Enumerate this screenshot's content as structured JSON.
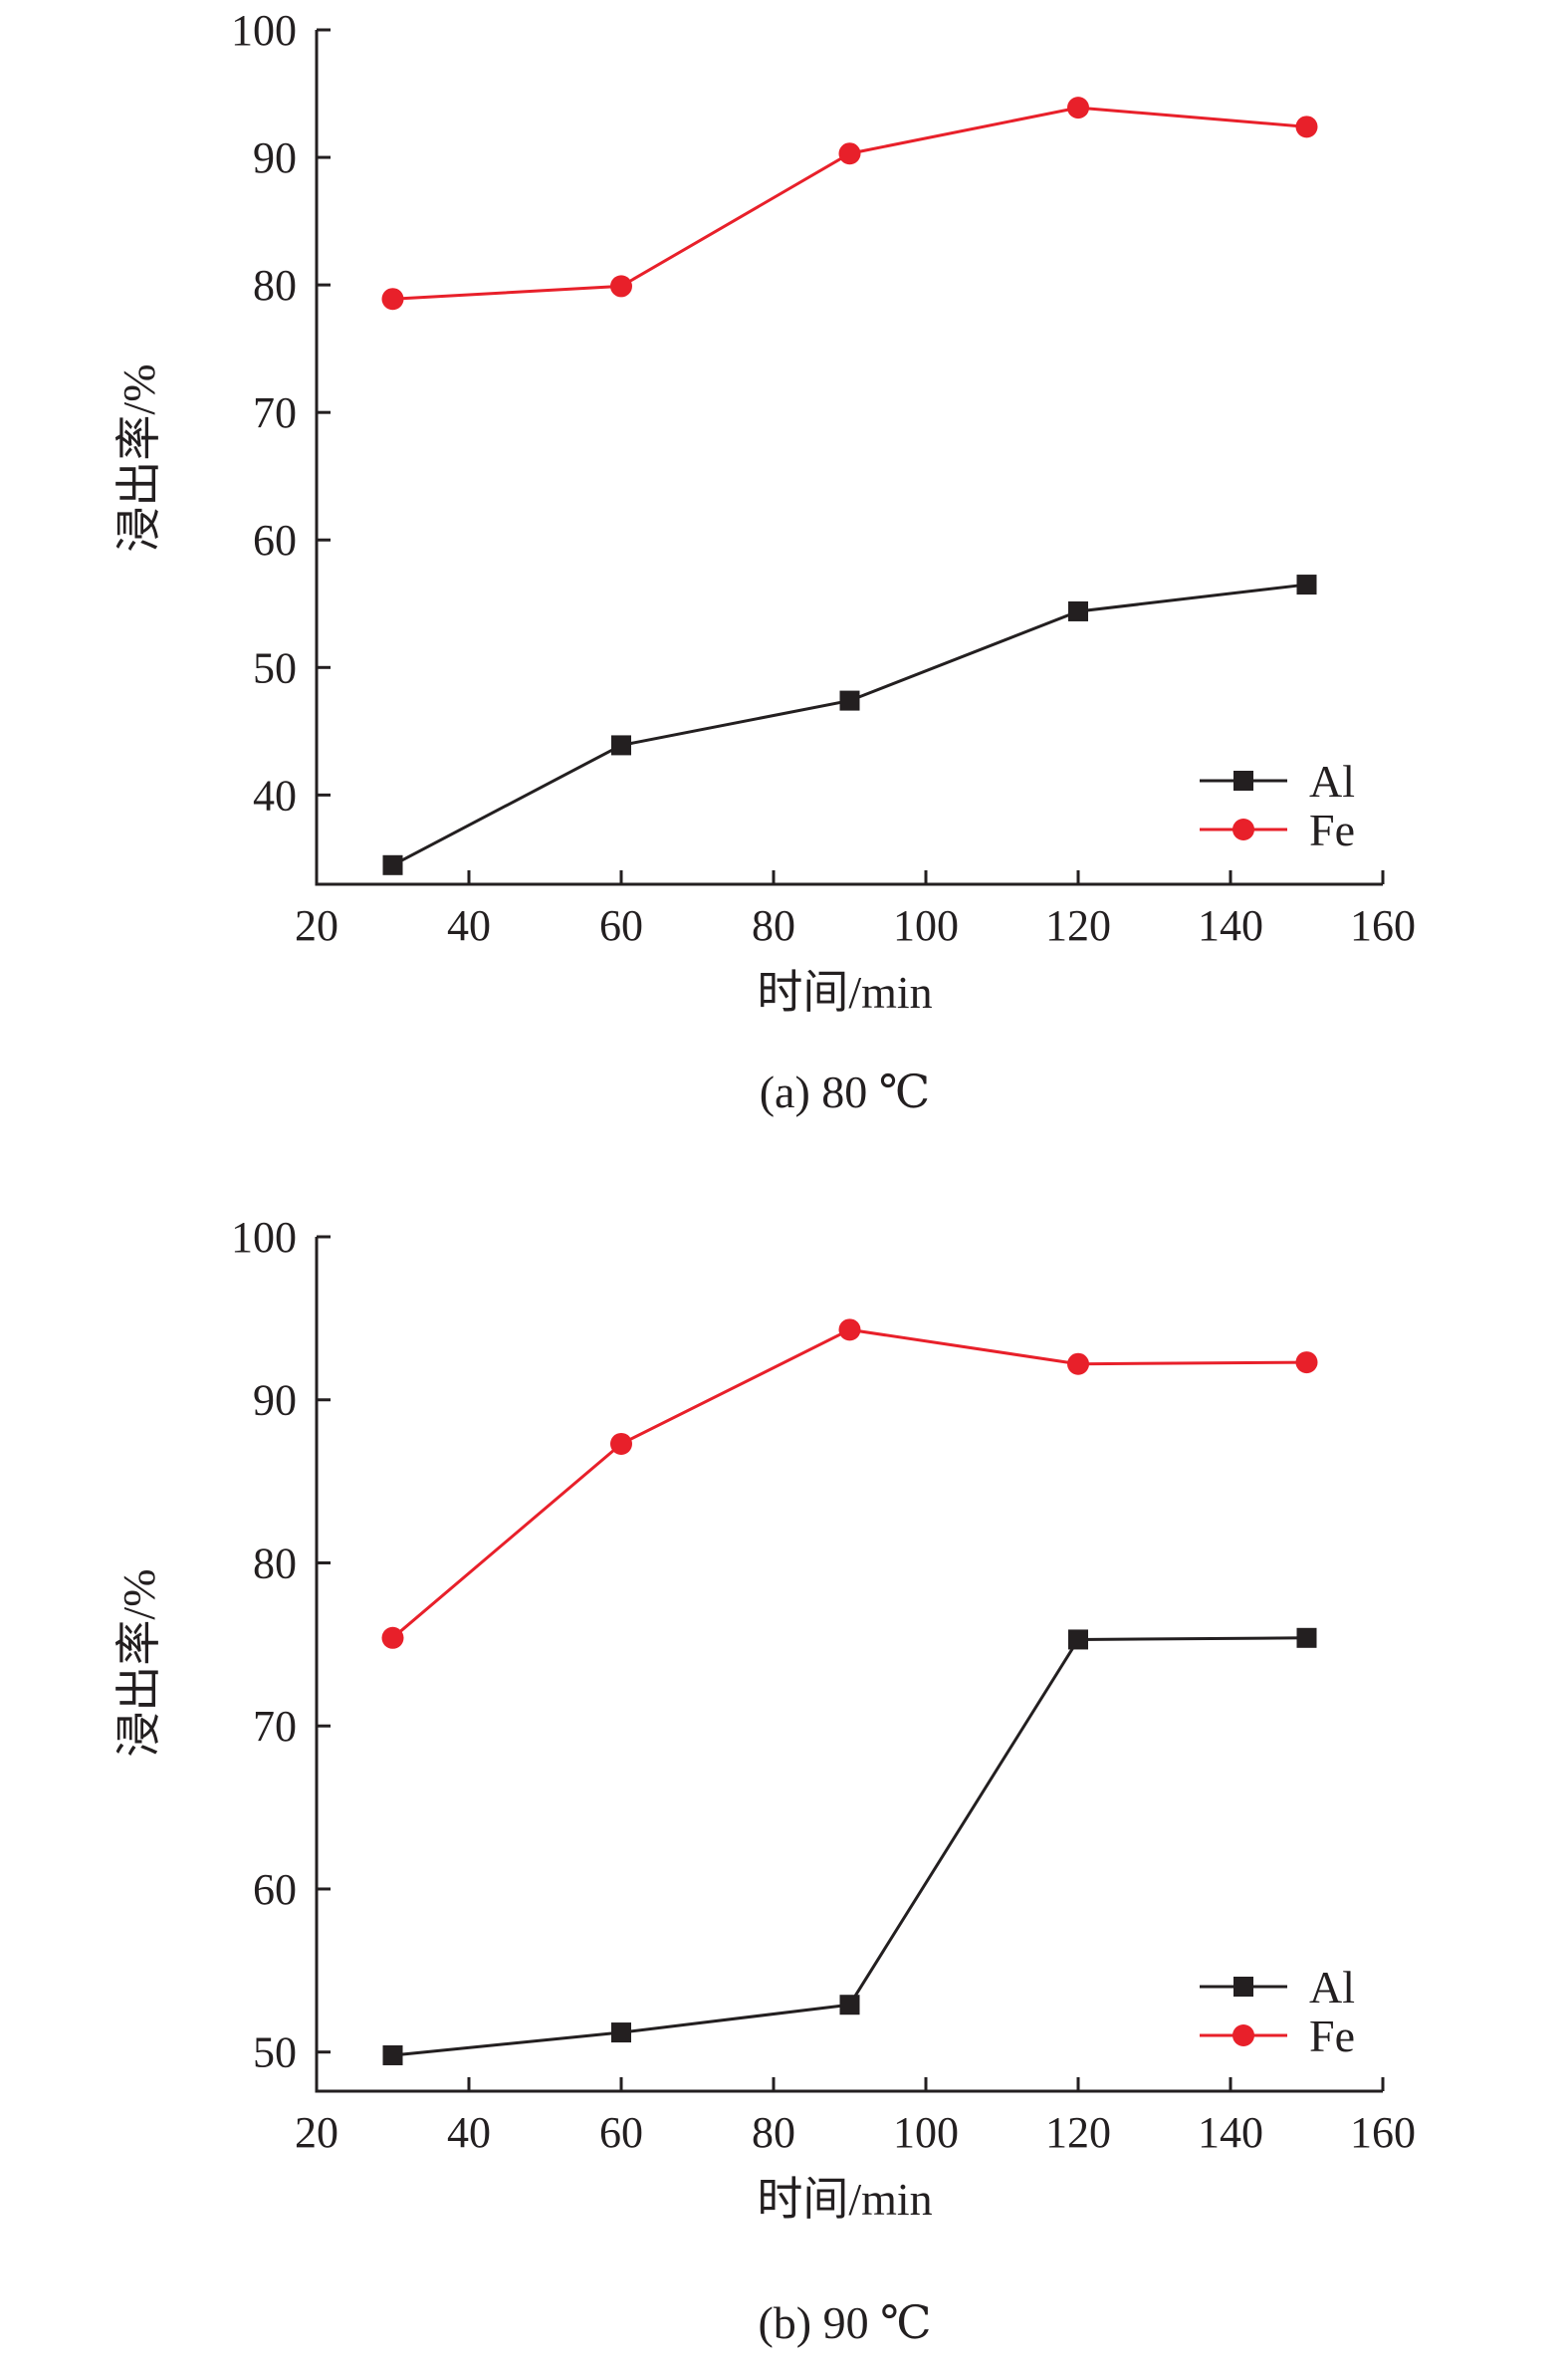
{
  "chart_data": [
    {
      "type": "line",
      "caption": "(a) 80 ℃",
      "xlabel": "时间/min",
      "ylabel": "浸出率/%",
      "xlim": [
        20,
        160
      ],
      "ylim": [
        33,
        100
      ],
      "xticks": [
        20,
        40,
        60,
        80,
        100,
        120,
        140,
        160
      ],
      "yticks": [
        40,
        50,
        60,
        70,
        80,
        90,
        100
      ],
      "grid": false,
      "legend_position": "bottom-right",
      "x": [
        30,
        60,
        90,
        120,
        150
      ],
      "series": [
        {
          "name": "Al",
          "color": "#231f20",
          "marker": "square",
          "values": [
            34.5,
            43.9,
            47.4,
            54.4,
            56.5
          ]
        },
        {
          "name": "Fe",
          "color": "#e8202a",
          "marker": "circle",
          "values": [
            78.9,
            79.9,
            90.3,
            93.9,
            92.4
          ]
        }
      ]
    },
    {
      "type": "line",
      "caption": "(b) 90 ℃",
      "xlabel": "时间/min",
      "ylabel": "浸出率/%",
      "xlim": [
        20,
        160
      ],
      "ylim": [
        47.6,
        100
      ],
      "xticks": [
        20,
        40,
        60,
        80,
        100,
        120,
        140,
        160
      ],
      "yticks": [
        50,
        60,
        70,
        80,
        90,
        100
      ],
      "grid": false,
      "legend_position": "bottom-right",
      "x": [
        30,
        60,
        90,
        120,
        150
      ],
      "series": [
        {
          "name": "Al",
          "color": "#231f20",
          "marker": "square",
          "values": [
            49.8,
            51.2,
            52.9,
            75.3,
            75.4
          ]
        },
        {
          "name": "Fe",
          "color": "#e8202a",
          "marker": "circle",
          "values": [
            75.4,
            87.3,
            94.3,
            92.2,
            92.3
          ]
        }
      ]
    }
  ]
}
